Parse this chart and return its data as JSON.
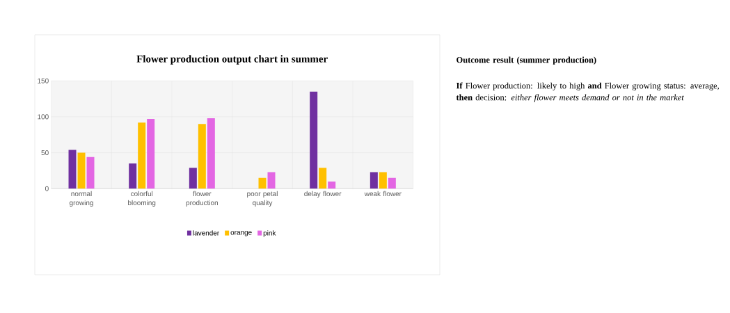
{
  "chart_data": {
    "type": "bar",
    "title": "Flower production output chart  in summer",
    "categories": [
      "normal growing",
      "colorful blooming",
      "flower production",
      "poor petal quality",
      "delay flower",
      "weak flower"
    ],
    "series": [
      {
        "name": "lavender",
        "color": "#7030a0",
        "values": [
          54,
          35,
          29,
          null,
          135,
          23
        ]
      },
      {
        "name": "orange",
        "color": "#ffc000",
        "values": [
          50,
          92,
          90,
          15,
          29,
          23
        ]
      },
      {
        "name": "pink",
        "color": "#e366e3",
        "values": [
          44,
          97,
          98,
          23,
          10,
          15
        ]
      }
    ],
    "ylim": [
      0,
      150
    ],
    "yticks": [
      0,
      50,
      100,
      150
    ],
    "grid": true,
    "legend": "bottom",
    "annotations": [
      "**Outcome result (summer production)**",
      "**If** Flower production: likely to high **and** Flower growing status: average, **then** decision: *either flower meets demand or not in the market*"
    ]
  }
}
